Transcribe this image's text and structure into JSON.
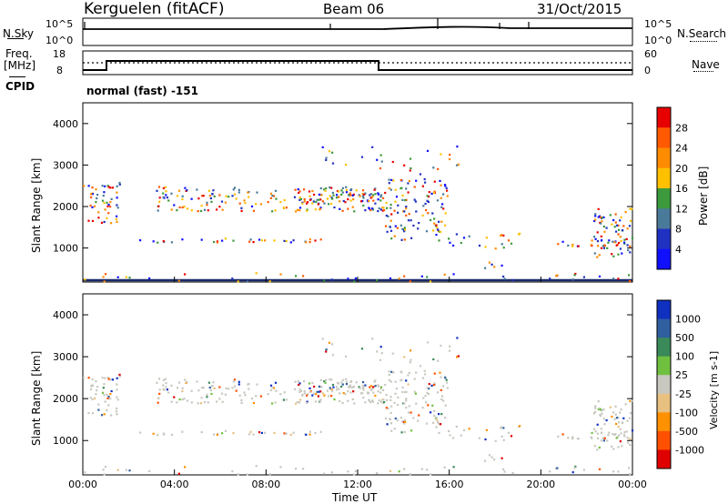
{
  "header": {
    "station": "Kerguelen (fitACF)",
    "beam": "Beam 06",
    "date": "31/Oct/2015"
  },
  "noise_panel": {
    "left_label": "N.Sky",
    "right_label": "N.Search",
    "left_ticks": [
      "10^5",
      "10^0"
    ],
    "right_ticks": [
      "10^5",
      "10^0"
    ]
  },
  "freq_panel": {
    "left_label_1": "Freq.",
    "left_label_2": "[MHz]",
    "left_ticks": [
      "18",
      "8"
    ],
    "right_label": "Nave",
    "right_ticks": [
      "60",
      "0"
    ],
    "cpid_label": "CPID"
  },
  "cpid_panel": {
    "text": "normal (fast) -151"
  },
  "chart_data": [
    {
      "type": "heatmap",
      "name": "power",
      "ylabel": "Slant Range [km]",
      "ylim": [
        180,
        4500
      ],
      "yticks": [
        1000,
        2000,
        3000,
        4000
      ],
      "xticks": [
        "00:00",
        "04:00",
        "08:00",
        "12:00",
        "16:00",
        "20:00",
        "00:00"
      ],
      "colorbar": {
        "label": "Power [dB]",
        "ticks": [
          "28",
          "24",
          "20",
          "16",
          "12",
          "8",
          "4"
        ],
        "colors": [
          "#e80000",
          "#ff5a00",
          "#ff8c00",
          "#ffc000",
          "#3c9a3c",
          "#4a7a9a",
          "#2030c0",
          "#1010ff"
        ]
      }
    },
    {
      "type": "heatmap",
      "name": "velocity",
      "ylabel": "Slant Range [km]",
      "ylim": [
        180,
        4500
      ],
      "yticks": [
        1000,
        2000,
        3000,
        4000
      ],
      "xticks": [
        "00:00",
        "04:00",
        "08:00",
        "12:00",
        "16:00",
        "20:00",
        "00:00"
      ],
      "xlabel": "Time UT",
      "colorbar": {
        "label": "Velocity [m s-1]",
        "ticks": [
          "1000",
          "500",
          "100",
          "25",
          "-25",
          "-100",
          "-500",
          "-1000"
        ],
        "colors": [
          "#1030c0",
          "#2f5f9f",
          "#3a8a5a",
          "#70c040",
          "#c8c8c0",
          "#e8c080",
          "#ff9000",
          "#ff5000",
          "#e00000"
        ]
      }
    }
  ]
}
